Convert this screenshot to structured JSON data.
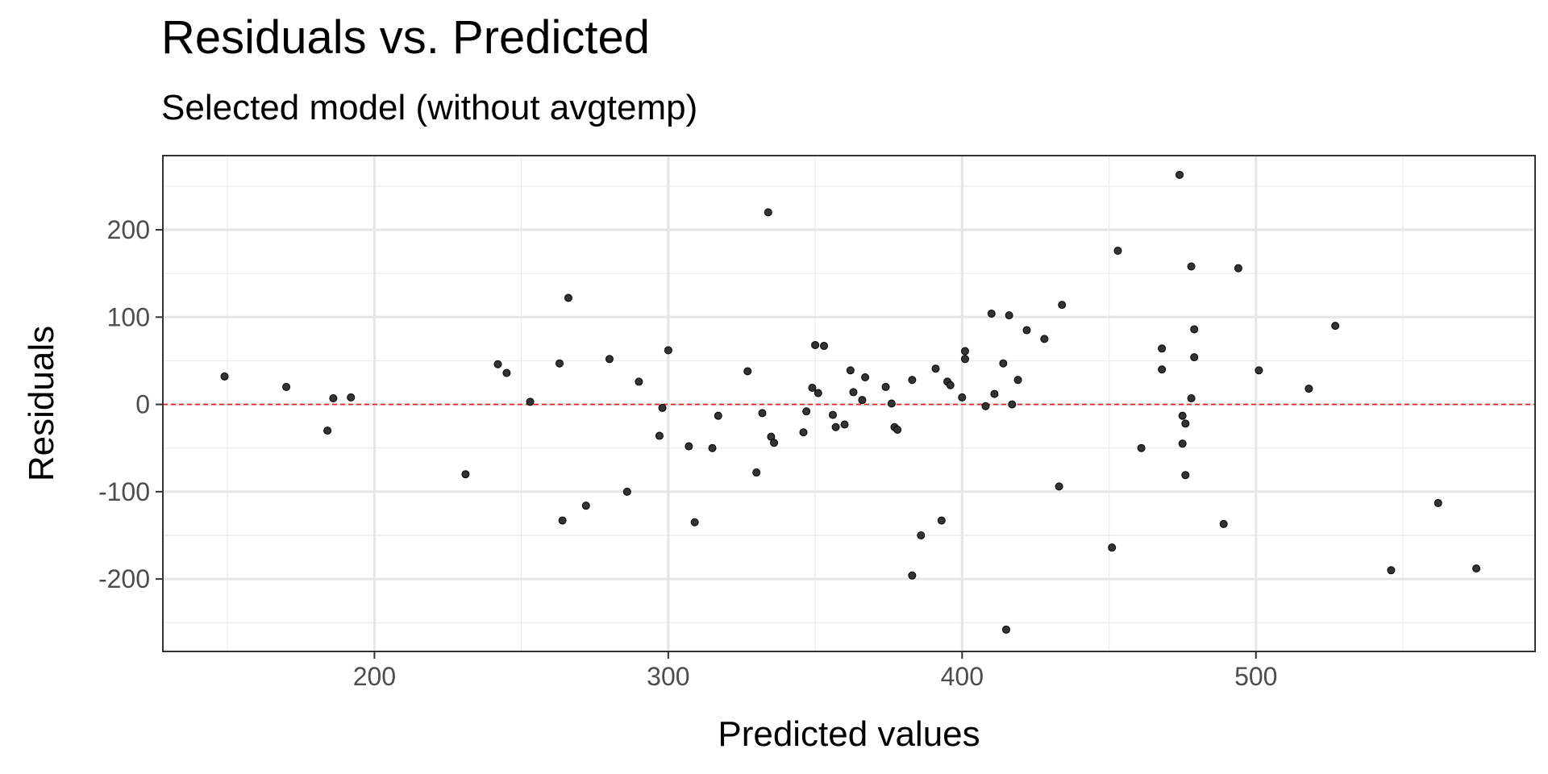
{
  "chart_data": {
    "type": "scatter",
    "title": "Residuals vs. Predicted",
    "subtitle": "Selected model (without avgtemp)",
    "xlabel": "Predicted values",
    "ylabel": "Residuals",
    "xlim": [
      128,
      595
    ],
    "ylim": [
      -283,
      285
    ],
    "x_ticks": [
      200,
      300,
      400,
      500
    ],
    "y_ticks": [
      200,
      100,
      0,
      -100,
      -200
    ],
    "x_tick_labels": [
      "200",
      "300",
      "400",
      "500"
    ],
    "y_tick_labels": [
      "200",
      "100",
      "0",
      "-100",
      "-200"
    ],
    "grid": true,
    "reference_line": {
      "y": 0,
      "color": "#e8202a",
      "style": "dashed"
    },
    "point_color": "#333333",
    "points": [
      [
        149,
        32
      ],
      [
        170,
        20
      ],
      [
        184,
        -30
      ],
      [
        186,
        7
      ],
      [
        192,
        8
      ],
      [
        231,
        -80
      ],
      [
        242,
        46
      ],
      [
        245,
        36
      ],
      [
        253,
        3
      ],
      [
        263,
        47
      ],
      [
        264,
        -133
      ],
      [
        266,
        122
      ],
      [
        272,
        -116
      ],
      [
        280,
        52
      ],
      [
        286,
        -100
      ],
      [
        290,
        26
      ],
      [
        297,
        -36
      ],
      [
        298,
        -4
      ],
      [
        300,
        62
      ],
      [
        307,
        -48
      ],
      [
        309,
        -135
      ],
      [
        315,
        -50
      ],
      [
        317,
        -13
      ],
      [
        327,
        38
      ],
      [
        330,
        -78
      ],
      [
        332,
        -10
      ],
      [
        334,
        220
      ],
      [
        335,
        -37
      ],
      [
        336,
        -44
      ],
      [
        346,
        -32
      ],
      [
        347,
        -8
      ],
      [
        349,
        19
      ],
      [
        350,
        68
      ],
      [
        351,
        13
      ],
      [
        353,
        67
      ],
      [
        356,
        -12
      ],
      [
        357,
        -26
      ],
      [
        360,
        -23
      ],
      [
        362,
        39
      ],
      [
        363,
        14
      ],
      [
        366,
        5
      ],
      [
        367,
        31
      ],
      [
        374,
        20
      ],
      [
        376,
        1
      ],
      [
        377,
        -26
      ],
      [
        378,
        -29
      ],
      [
        383,
        28
      ],
      [
        383,
        -196
      ],
      [
        386,
        -150
      ],
      [
        391,
        41
      ],
      [
        393,
        -133
      ],
      [
        395,
        26
      ],
      [
        396,
        22
      ],
      [
        400,
        8
      ],
      [
        401,
        52
      ],
      [
        401,
        61
      ],
      [
        408,
        -2
      ],
      [
        410,
        104
      ],
      [
        411,
        12
      ],
      [
        414,
        47
      ],
      [
        415,
        -258
      ],
      [
        416,
        102
      ],
      [
        417,
        0
      ],
      [
        419,
        28
      ],
      [
        422,
        85
      ],
      [
        428,
        75
      ],
      [
        433,
        -94
      ],
      [
        434,
        114
      ],
      [
        451,
        -164
      ],
      [
        453,
        176
      ],
      [
        461,
        -50
      ],
      [
        468,
        64
      ],
      [
        468,
        40
      ],
      [
        474,
        263
      ],
      [
        475,
        -45
      ],
      [
        475,
        -13
      ],
      [
        476,
        -22
      ],
      [
        476,
        -81
      ],
      [
        478,
        158
      ],
      [
        478,
        7
      ],
      [
        479,
        86
      ],
      [
        479,
        54
      ],
      [
        489,
        -137
      ],
      [
        494,
        156
      ],
      [
        501,
        39
      ],
      [
        518,
        18
      ],
      [
        527,
        90
      ],
      [
        546,
        -190
      ],
      [
        562,
        -113
      ],
      [
        575,
        -188
      ]
    ]
  }
}
